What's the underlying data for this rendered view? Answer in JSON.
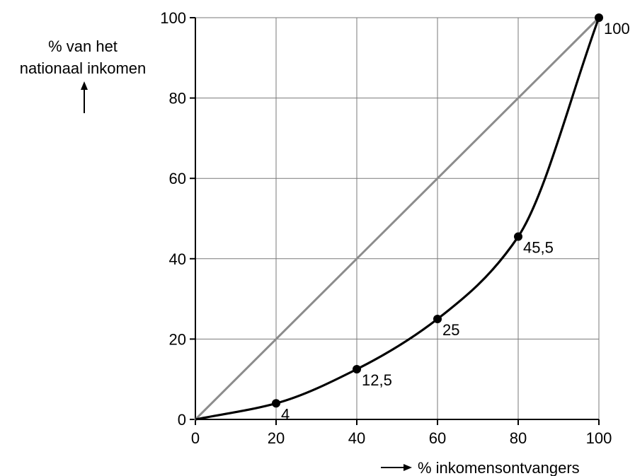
{
  "chart_data": {
    "type": "line",
    "xlabel": "% inkomensontvangers",
    "ylabel_lines": [
      "% van het",
      "nationaal inkomen"
    ],
    "xlim": [
      0,
      100
    ],
    "ylim": [
      0,
      100
    ],
    "x_ticks": [
      0,
      20,
      40,
      60,
      80,
      100
    ],
    "y_ticks": [
      0,
      20,
      40,
      60,
      80,
      100
    ],
    "x_tick_labels": [
      "0",
      "20",
      "40",
      "60",
      "80",
      "100"
    ],
    "y_tick_labels": [
      "0",
      "20",
      "40",
      "60",
      "80",
      "100"
    ],
    "grid": true,
    "series": [
      {
        "style": "equality-line",
        "color": "#8c8c8c",
        "x": [
          0,
          100
        ],
        "y": [
          0,
          100
        ]
      },
      {
        "style": "lorenz-curve",
        "color": "#000000",
        "x": [
          0,
          20,
          40,
          60,
          80,
          100
        ],
        "y": [
          0,
          4,
          12.5,
          25,
          45.5,
          100
        ],
        "points": [
          {
            "x": 20,
            "y": 4,
            "label": "4"
          },
          {
            "x": 40,
            "y": 12.5,
            "label": "12,5"
          },
          {
            "x": 60,
            "y": 25,
            "label": "25"
          },
          {
            "x": 80,
            "y": 45.5,
            "label": "45,5"
          },
          {
            "x": 100,
            "y": 100,
            "label": "100"
          }
        ]
      }
    ]
  }
}
